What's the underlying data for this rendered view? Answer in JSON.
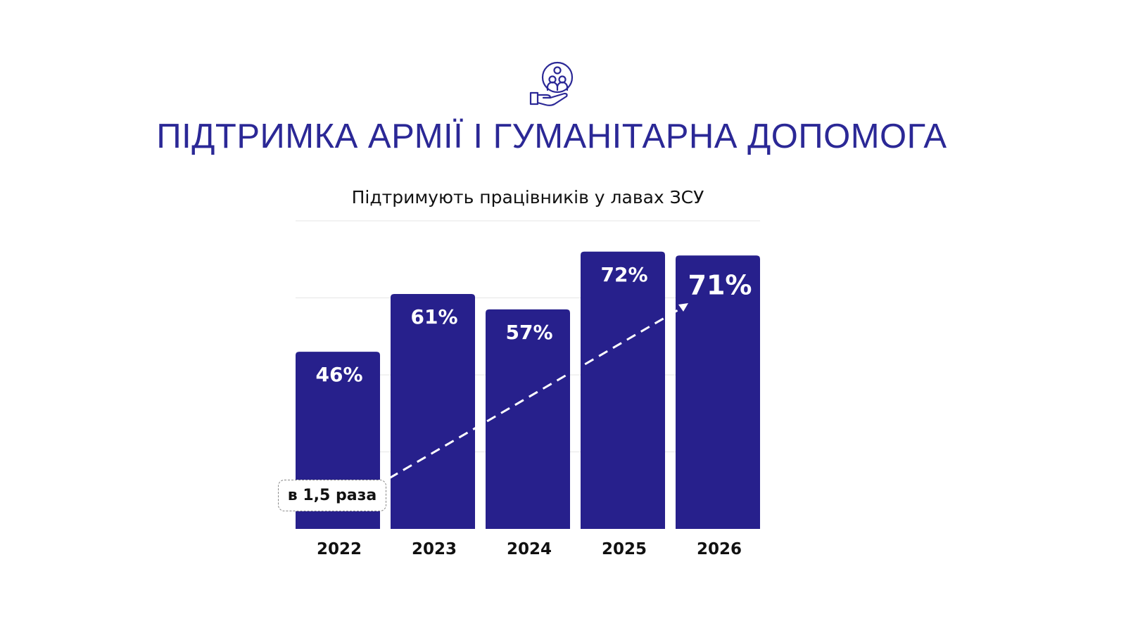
{
  "title": "ПІДТРИМКА АРМІЇ І ГУМАНІТАРНА ДОПОМОГА",
  "icon": "hand-holding-people-icon",
  "colors": {
    "bar": "#27208c",
    "title": "#2b2896",
    "grid": "#e6e6e6"
  },
  "chart_data": {
    "type": "bar",
    "title": "Підтримують працівників у лавах ЗСУ",
    "categories": [
      "2022",
      "2023",
      "2024",
      "2025",
      "2026"
    ],
    "values": [
      46,
      61,
      57,
      72,
      71
    ],
    "data_labels": [
      "46%",
      "61%",
      "57%",
      "72%",
      "71%"
    ],
    "ylim": [
      0,
      80
    ],
    "grid": true,
    "annotation": {
      "text": "в 1,5 раза",
      "type": "dashed-trend-arrow",
      "from": "2022",
      "to": "2026"
    }
  }
}
